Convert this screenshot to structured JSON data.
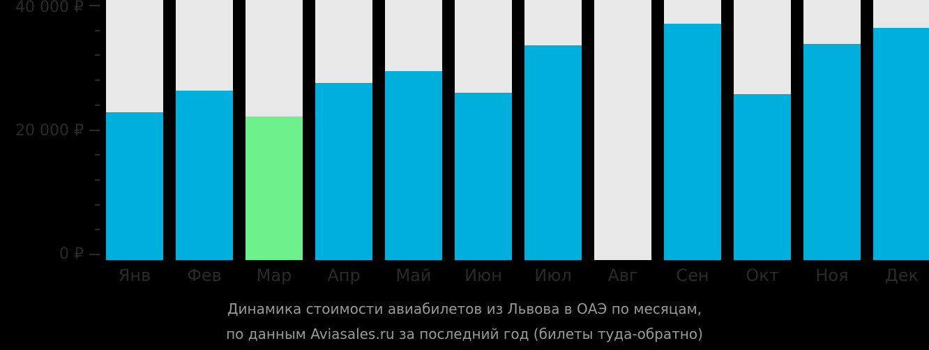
{
  "chart_data": {
    "type": "bar",
    "title": "Динамика стоимости авиабилетов из Львова в ОАЭ по месяцам, по данным Aviasales.ru за последний год (билеты туда-обратно)",
    "categories": [
      "Янв",
      "Фев",
      "Мар",
      "Апр",
      "Май",
      "Июн",
      "Июл",
      "Авг",
      "Сен",
      "Окт",
      "Ноя",
      "Дек"
    ],
    "values": [
      22860,
      26330,
      22180,
      27560,
      29470,
      26000,
      33610,
      0,
      37090,
      25770,
      33840,
      36410
    ],
    "ylim": [
      0,
      40000
    ],
    "yticks": [
      "0 ₽",
      "20 000 ₽",
      "40 000 ₽"
    ],
    "xlabel": "",
    "ylabel": "",
    "grid": false,
    "highlight_index": 2,
    "colors": {
      "bar": "#00b0dc",
      "highlight": "#6ef08a",
      "background_bar": "#e8e8e8",
      "background": "#000000"
    }
  },
  "caption": {
    "line1": "Динамика стоимости авиабилетов из Львова в ОАЭ по месяцам,",
    "line2": "по данным Aviasales.ru за последний год (билеты туда-обратно)"
  }
}
